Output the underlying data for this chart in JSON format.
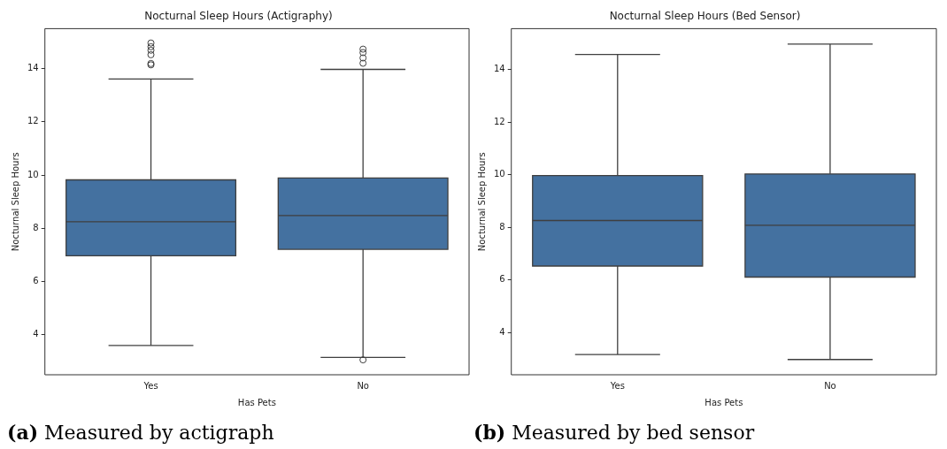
{
  "chart_data": [
    {
      "type": "box",
      "title": "Nocturnal Sleep Hours (Actigraphy)",
      "xlabel": "Has Pets",
      "ylabel": "Nocturnal Sleep Hours",
      "categories": [
        "Yes",
        "No"
      ],
      "color": "#4471a0",
      "ylim": [
        2.5,
        15.5
      ],
      "yticks": [
        4,
        6,
        8,
        10,
        12,
        14
      ],
      "grid": false,
      "boxes": [
        {
          "low": 3.6,
          "q1": 6.97,
          "median": 8.25,
          "q3": 9.82,
          "high": 13.61,
          "outliers": [
            14.96,
            14.82,
            14.69,
            14.52,
            14.19,
            14.14
          ]
        },
        {
          "low": 3.15,
          "q1": 7.21,
          "median": 8.48,
          "q3": 9.89,
          "high": 13.97,
          "outliers": [
            14.73,
            14.6,
            14.4,
            14.2,
            3.06
          ]
        }
      ],
      "annotations": [
        "(a) Measured by actigraph"
      ]
    },
    {
      "type": "box",
      "title": "Nocturnal Sleep Hours (Bed Sensor)",
      "xlabel": "Has Pets",
      "ylabel": "Nocturnal Sleep Hours",
      "categories": [
        "Yes",
        "No"
      ],
      "color": "#4471a0",
      "ylim": [
        2.4,
        15.55
      ],
      "yticks": [
        4,
        6,
        8,
        10,
        12,
        14
      ],
      "grid": false,
      "boxes": [
        {
          "low": 3.17,
          "q1": 6.53,
          "median": 8.26,
          "q3": 9.97,
          "high": 14.57
        },
        {
          "low": 2.98,
          "q1": 6.11,
          "median": 8.08,
          "q3": 10.03,
          "high": 14.96
        }
      ],
      "annotations": [
        "(b) Measured by bed sensor"
      ]
    }
  ]
}
